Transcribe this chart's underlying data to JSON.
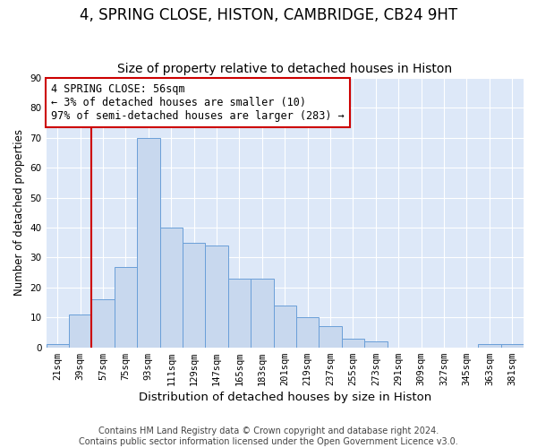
{
  "title": "4, SPRING CLOSE, HISTON, CAMBRIDGE, CB24 9HT",
  "subtitle": "Size of property relative to detached houses in Histon",
  "xlabel": "Distribution of detached houses by size in Histon",
  "ylabel": "Number of detached properties",
  "bar_color": "#c8d8ee",
  "bar_edge_color": "#6a9fd8",
  "categories": [
    "21sqm",
    "39sqm",
    "57sqm",
    "75sqm",
    "93sqm",
    "111sqm",
    "129sqm",
    "147sqm",
    "165sqm",
    "183sqm",
    "201sqm",
    "219sqm",
    "237sqm",
    "255sqm",
    "273sqm",
    "291sqm",
    "309sqm",
    "327sqm",
    "345sqm",
    "363sqm",
    "381sqm"
  ],
  "values": [
    1,
    11,
    16,
    27,
    70,
    40,
    35,
    34,
    23,
    23,
    14,
    10,
    7,
    3,
    2,
    0,
    0,
    0,
    0,
    1,
    1
  ],
  "vline_index": 2,
  "vline_color": "#cc0000",
  "annotation_text": "4 SPRING CLOSE: 56sqm\n← 3% of detached houses are smaller (10)\n97% of semi-detached houses are larger (283) →",
  "annotation_box_color": "#ffffff",
  "annotation_box_edge_color": "#cc0000",
  "ylim": [
    0,
    90
  ],
  "yticks": [
    0,
    10,
    20,
    30,
    40,
    50,
    60,
    70,
    80,
    90
  ],
  "footer": "Contains HM Land Registry data © Crown copyright and database right 2024.\nContains public sector information licensed under the Open Government Licence v3.0.",
  "background_color": "#dde8f8",
  "grid_color": "#ffffff",
  "title_fontsize": 12,
  "subtitle_fontsize": 10,
  "xlabel_fontsize": 9.5,
  "ylabel_fontsize": 8.5,
  "tick_fontsize": 7.5,
  "annotation_fontsize": 8.5,
  "footer_fontsize": 7
}
